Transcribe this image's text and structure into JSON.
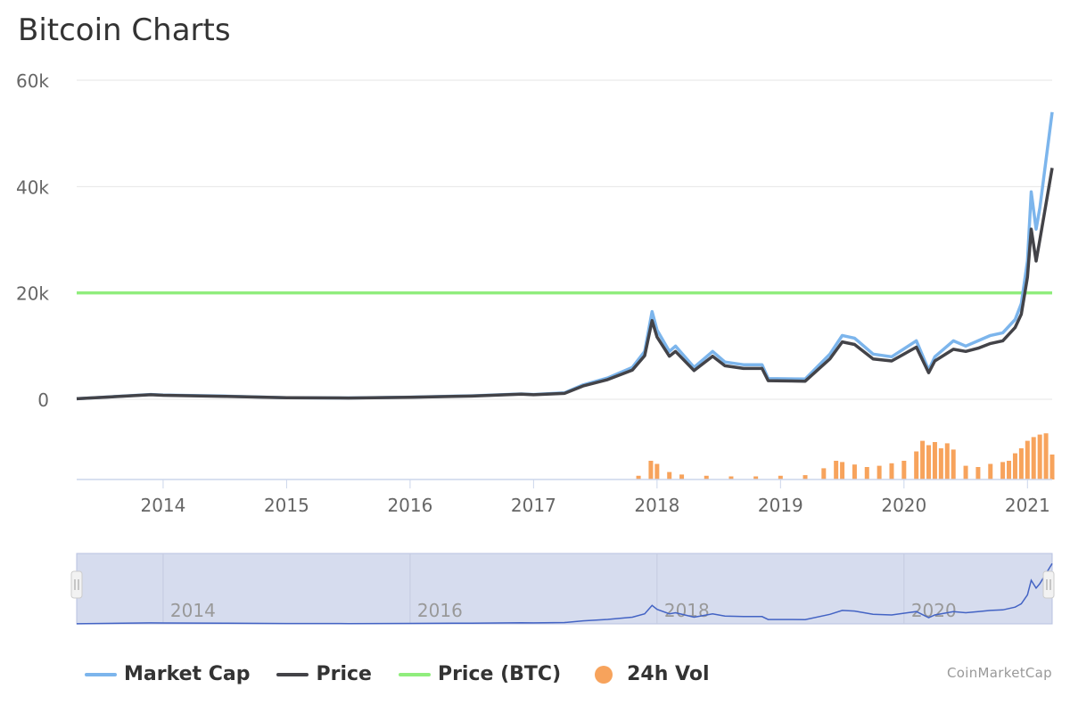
{
  "colors": {
    "market_cap": "#7cb5ec",
    "price": "#434348",
    "price_btc": "#90ed7d",
    "volume": "#f7a35c",
    "navigator_fill": "#d6dcee",
    "navigator_line": "#4363c4"
  },
  "chart_data": {
    "type": "line",
    "title": "Bitcoin Charts",
    "credit": "CoinMarketCap",
    "y_axis": {
      "range": [
        0,
        60000
      ],
      "ticks": [
        0,
        20000,
        40000,
        60000
      ],
      "tick_labels": [
        "0",
        "20k",
        "40k",
        "60k"
      ],
      "grid": true
    },
    "x_axis": {
      "range": [
        2013.3,
        2021.2
      ],
      "ticks": [
        2014,
        2015,
        2016,
        2017,
        2018,
        2019,
        2020,
        2021
      ],
      "tick_labels": [
        "2014",
        "2015",
        "2016",
        "2017",
        "2018",
        "2019",
        "2020",
        "2021"
      ]
    },
    "legend_placement": "bottom-left",
    "series": [
      {
        "name": "Market Cap",
        "x": [
          2013.3,
          2013.9,
          2014.0,
          2014.5,
          2015.0,
          2015.5,
          2016.0,
          2016.5,
          2016.9,
          2017.0,
          2017.25,
          2017.4,
          2017.6,
          2017.8,
          2017.9,
          2017.96,
          2018.0,
          2018.1,
          2018.15,
          2018.3,
          2018.45,
          2018.55,
          2018.7,
          2018.85,
          2018.9,
          2019.2,
          2019.4,
          2019.5,
          2019.6,
          2019.75,
          2019.9,
          2020.1,
          2020.2,
          2020.25,
          2020.4,
          2020.5,
          2020.6,
          2020.7,
          2020.8,
          2020.9,
          2020.95,
          2021.0,
          2021.03,
          2021.07,
          2021.1,
          2021.2
        ],
        "values": [
          100,
          900,
          800,
          600,
          300,
          250,
          400,
          650,
          1000,
          900,
          1200,
          2700,
          4000,
          6000,
          9000,
          16500,
          13000,
          9000,
          10000,
          6000,
          9000,
          7000,
          6500,
          6500,
          3900,
          3800,
          8500,
          12000,
          11500,
          8500,
          8000,
          11000,
          5500,
          8000,
          11000,
          10000,
          11000,
          12000,
          12500,
          15000,
          18000,
          26000,
          39000,
          32000,
          36000,
          54000
        ]
      },
      {
        "name": "Price",
        "x": [
          2013.3,
          2013.9,
          2014.0,
          2014.5,
          2015.0,
          2015.5,
          2016.0,
          2016.5,
          2016.9,
          2017.0,
          2017.25,
          2017.4,
          2017.6,
          2017.8,
          2017.9,
          2017.96,
          2018.0,
          2018.1,
          2018.15,
          2018.3,
          2018.45,
          2018.55,
          2018.7,
          2018.85,
          2018.9,
          2019.2,
          2019.4,
          2019.5,
          2019.6,
          2019.75,
          2019.9,
          2020.1,
          2020.2,
          2020.25,
          2020.4,
          2020.5,
          2020.6,
          2020.7,
          2020.8,
          2020.9,
          2020.95,
          2021.0,
          2021.03,
          2021.07,
          2021.1,
          2021.2
        ],
        "values": [
          100,
          850,
          750,
          550,
          280,
          230,
          380,
          600,
          950,
          850,
          1100,
          2500,
          3700,
          5500,
          8200,
          14800,
          11700,
          8100,
          9000,
          5400,
          8100,
          6300,
          5800,
          5800,
          3500,
          3400,
          7600,
          10800,
          10300,
          7600,
          7200,
          9800,
          5000,
          7200,
          9400,
          9000,
          9600,
          10500,
          11000,
          13500,
          16000,
          23000,
          32000,
          26000,
          30000,
          43500
        ]
      },
      {
        "name": "Price (BTC)",
        "x": [
          2013.3,
          2021.2
        ],
        "values": [
          20000,
          20000
        ]
      },
      {
        "name": "24h Vol",
        "type": "column",
        "x": [
          2017.85,
          2017.95,
          2018.0,
          2018.1,
          2018.2,
          2018.4,
          2018.6,
          2018.8,
          2019.0,
          2019.2,
          2019.35,
          2019.45,
          2019.5,
          2019.6,
          2019.7,
          2019.8,
          2019.9,
          2020.0,
          2020.1,
          2020.15,
          2020.2,
          2020.25,
          2020.3,
          2020.35,
          2020.4,
          2020.5,
          2020.6,
          2020.7,
          2020.8,
          2020.85,
          2020.9,
          2020.95,
          2021.0,
          2021.05,
          2021.1,
          2021.15,
          2021.2
        ],
        "values": [
          0.06,
          0.3,
          0.25,
          0.12,
          0.08,
          0.06,
          0.05,
          0.05,
          0.06,
          0.07,
          0.18,
          0.3,
          0.28,
          0.24,
          0.2,
          0.22,
          0.26,
          0.3,
          0.45,
          0.62,
          0.55,
          0.6,
          0.5,
          0.58,
          0.48,
          0.22,
          0.2,
          0.25,
          0.28,
          0.3,
          0.42,
          0.5,
          0.62,
          0.68,
          0.72,
          0.74,
          0.4
        ]
      }
    ],
    "navigator": {
      "tick_labels": [
        "2014",
        "2016",
        "2018",
        "2020"
      ],
      "ticks": [
        2014,
        2016,
        2018,
        2020
      ]
    }
  }
}
